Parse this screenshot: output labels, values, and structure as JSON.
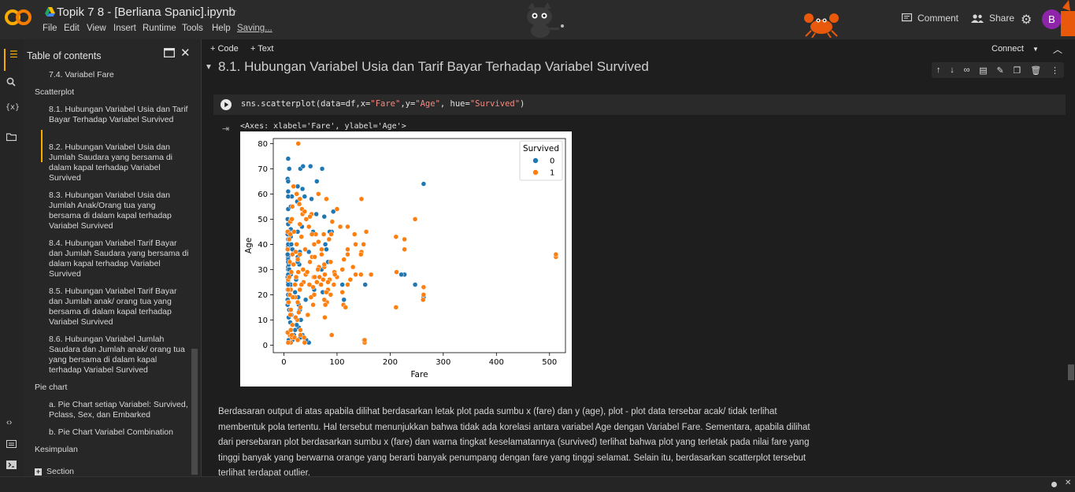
{
  "header": {
    "title": "Topik 7 8 - [Berliana Spanic].ipynb",
    "menus": [
      "File",
      "Edit",
      "View",
      "Insert",
      "Runtime",
      "Tools",
      "Help"
    ],
    "saving": "Saving...",
    "comment": "Comment",
    "share": "Share",
    "avatar": "B"
  },
  "sidebar": {
    "title": "Table of contents",
    "items": [
      {
        "text": "7.4. Variabel Fare",
        "level": 2
      },
      {
        "text": "Scatterplot",
        "level": 1
      },
      {
        "text": "8.1. Hubungan Variabel Usia dan Tarif Bayar Terhadap Variabel Survived",
        "level": 2,
        "active": true
      },
      {
        "text": "8.2. Hubungan Variabel Usia dan Jumlah Saudara yang bersama di dalam kapal terhadap Variabel Survived",
        "level": 2
      },
      {
        "text": "8.3. Hubungan Variabel Usia dan Jumlah Anak/Orang tua yang bersama di dalam kapal terhadap Variabel Survived",
        "level": 2
      },
      {
        "text": "8.4. Hubungan Variabel Tarif Bayar dan Jumlah Saudara yang bersama di dalam kapal terhadap Variabel Survived",
        "level": 2
      },
      {
        "text": "8.5. Hubungan Variabel Tarif Bayar dan Jumlah anak/ orang tua yang bersama di dalam kapal terhadap Variabel Survived",
        "level": 2
      },
      {
        "text": "8.6. Hubungan Variabel Jumlah Saudara dan Jumlah anak/ orang tua yang bersama di dalam kapal terhadap Variabel Survived",
        "level": 2
      },
      {
        "text": "Pie chart",
        "level": 1
      },
      {
        "text": "a. Pie Chart setiap Variabel: Survived, Pclass, Sex, dan Embarked",
        "level": 2
      },
      {
        "text": "b. Pie Chart Variabel Combination",
        "level": 2
      },
      {
        "text": "Kesimpulan",
        "level": 1
      },
      {
        "text": "Section",
        "level": 1
      }
    ]
  },
  "toolbar": {
    "code": "+ Code",
    "text": "+ Text",
    "connect": "Connect"
  },
  "notebook": {
    "heading": "8.1. Hubungan Variabel Usia dan Tarif Bayar Terhadap Variabel Survived",
    "code_prefix": "sns.scatterplot(data=df,x=",
    "code_s1": "\"Fare\"",
    "code_mid": ",y=",
    "code_s2": "\"Age\"",
    "code_mid2": ", hue=",
    "code_s3": "\"Survived\"",
    "code_suffix": ")",
    "output_text": "<Axes: xlabel='Fare', ylabel='Age'>",
    "paragraph": "Berdasaran output di atas apabila dilihat berdasarkan letak plot pada sumbu x (fare) dan y (age), plot - plot data tersebar acak/ tidak terlihat membentuk pola tertentu. Hal tersebut menunjukkan bahwa tidak ada korelasi antara variabel Age dengan Variabel Fare. Sementara, apabila dilihat dari persebaran plot berdasarkan sumbu x (fare) dan warna tingkat keselamatannya (survived) terlihat bahwa plot yang terletak pada nilai fare yang tinggi banyak yang berwarna orange yang berarti banyak penumpang dengan fare yang tinggi selamat. Selain itu, berdasarkan scatterplot tersebut terlihat terdapat outlier."
  },
  "colors": {
    "survived0": "#1f77b4",
    "survived1": "#ff7f0e",
    "accent": "#f9ab00"
  },
  "chart_data": {
    "type": "scatter",
    "xlabel": "Fare",
    "ylabel": "Age",
    "xlim": [
      -20,
      530
    ],
    "ylim": [
      -3,
      82
    ],
    "xticks": [
      0,
      100,
      200,
      300,
      400,
      500
    ],
    "yticks": [
      0,
      10,
      20,
      30,
      40,
      50,
      60,
      70,
      80
    ],
    "legend": {
      "title": "Survived",
      "placement": "top-right",
      "entries": [
        "0",
        "1"
      ]
    },
    "series": [
      {
        "name": "0",
        "points": [
          [
            7,
            22
          ],
          [
            8,
            35
          ],
          [
            8,
            54
          ],
          [
            9,
            2
          ],
          [
            7,
            27
          ],
          [
            8,
            20
          ],
          [
            8,
            39
          ],
          [
            16,
            2
          ],
          [
            26,
            35
          ],
          [
            13,
            55
          ],
          [
            8,
            31
          ],
          [
            10,
            14
          ],
          [
            8,
            40
          ],
          [
            16,
            19
          ],
          [
            7,
            66
          ],
          [
            13,
            28
          ],
          [
            8,
            42
          ],
          [
            21,
            21
          ],
          [
            7,
            18
          ],
          [
            8,
            40
          ],
          [
            8,
            65
          ],
          [
            8,
            28
          ],
          [
            7,
            44
          ],
          [
            52,
            58
          ],
          [
            23,
            26
          ],
          [
            31,
            70
          ],
          [
            7,
            16
          ],
          [
            27,
            19
          ],
          [
            10,
            30
          ],
          [
            8,
            48
          ],
          [
            8,
            25
          ],
          [
            13,
            24
          ],
          [
            8,
            61
          ],
          [
            8,
            34
          ],
          [
            13,
            46
          ],
          [
            8,
            17
          ],
          [
            26,
            45
          ],
          [
            9,
            32
          ],
          [
            8,
            38
          ],
          [
            47,
            37
          ],
          [
            8,
            74
          ],
          [
            10,
            70
          ],
          [
            39,
            59
          ],
          [
            73,
            21
          ],
          [
            8,
            30
          ],
          [
            8,
            28
          ],
          [
            15,
            59
          ],
          [
            29,
            32
          ],
          [
            78,
            40
          ],
          [
            151,
            2
          ],
          [
            153,
            24
          ],
          [
            263,
            19
          ],
          [
            247,
            24
          ],
          [
            263,
            64
          ],
          [
            227,
            28
          ],
          [
            221,
            28
          ],
          [
            113,
            18
          ],
          [
            110,
            24
          ],
          [
            76,
            51
          ],
          [
            61,
            52
          ],
          [
            35,
            62
          ],
          [
            34,
            47
          ],
          [
            26,
            33
          ],
          [
            26,
            63
          ],
          [
            21,
            6
          ],
          [
            40,
            2
          ],
          [
            28,
            7
          ],
          [
            32,
            10
          ],
          [
            19,
            4
          ],
          [
            47,
            1
          ],
          [
            55,
            45
          ],
          [
            71,
            30
          ],
          [
            83,
            33
          ],
          [
            90,
            45
          ],
          [
            28,
            16
          ],
          [
            12,
            9
          ],
          [
            9,
            11
          ],
          [
            31,
            3
          ],
          [
            7,
            50
          ],
          [
            8,
            59
          ],
          [
            7,
            22
          ],
          [
            8,
            26
          ],
          [
            7,
            36
          ],
          [
            8,
            33
          ],
          [
            8,
            24
          ],
          [
            14,
            40
          ],
          [
            14,
            12
          ],
          [
            24,
            8
          ],
          [
            30,
            14
          ],
          [
            35,
            4
          ],
          [
            42,
            2
          ],
          [
            50,
            71
          ],
          [
            36,
            71
          ],
          [
            72,
            70
          ],
          [
            62,
            65
          ],
          [
            93,
            53
          ],
          [
            86,
            45
          ],
          [
            80,
            38
          ],
          [
            57,
            22
          ],
          [
            52,
            44
          ],
          [
            41,
            18
          ],
          [
            25,
            57
          ],
          [
            13,
            43
          ],
          [
            20,
            24
          ],
          [
            10,
            30
          ],
          [
            12,
            22
          ],
          [
            16,
            38
          ],
          [
            9,
            45
          ],
          [
            14,
            50
          ],
          [
            30,
            37
          ]
        ]
      },
      {
        "name": "1",
        "points": [
          [
            71,
            38
          ],
          [
            8,
            26
          ],
          [
            53,
            35
          ],
          [
            11,
            4
          ],
          [
            30,
            58
          ],
          [
            16,
            55
          ],
          [
            13,
            14
          ],
          [
            31,
            15
          ],
          [
            7,
            38
          ],
          [
            21,
            19
          ],
          [
            146,
            58
          ],
          [
            12,
            49
          ],
          [
            76,
            31
          ],
          [
            263,
            23
          ],
          [
            30,
            48
          ],
          [
            15,
            3
          ],
          [
            15,
            4
          ],
          [
            22,
            37
          ],
          [
            26,
            34
          ],
          [
            35,
            52
          ],
          [
            81,
            17
          ],
          [
            80,
            58
          ],
          [
            30,
            36
          ],
          [
            7,
            45
          ],
          [
            13,
            1
          ],
          [
            27,
            29
          ],
          [
            13,
            22
          ],
          [
            86,
            26
          ],
          [
            10,
            42
          ],
          [
            512,
            35
          ],
          [
            512,
            36
          ],
          [
            247,
            50
          ],
          [
            262,
            18
          ],
          [
            263,
            20
          ],
          [
            211,
            15
          ],
          [
            227,
            38
          ],
          [
            227,
            42
          ],
          [
            211,
            43
          ],
          [
            212,
            29
          ],
          [
            152,
            1
          ],
          [
            150,
            40
          ],
          [
            155,
            45
          ],
          [
            135,
            40
          ],
          [
            120,
            47
          ],
          [
            106,
            47
          ],
          [
            91,
            49
          ],
          [
            113,
            34
          ],
          [
            94,
            24
          ],
          [
            77,
            28
          ],
          [
            66,
            31
          ],
          [
            57,
            20
          ],
          [
            83,
            22
          ],
          [
            69,
            24
          ],
          [
            55,
            16
          ],
          [
            120,
            38
          ],
          [
            110,
            30
          ],
          [
            135,
            28
          ],
          [
            145,
            28
          ],
          [
            133,
            44
          ],
          [
            164,
            28
          ],
          [
            146,
            37
          ],
          [
            120,
            36
          ],
          [
            78,
            16
          ],
          [
            76,
            18
          ],
          [
            62,
            25
          ],
          [
            55,
            23
          ],
          [
            89,
            44
          ],
          [
            57,
            40
          ],
          [
            56,
            27
          ],
          [
            77,
            11
          ],
          [
            7,
            5
          ],
          [
            13,
            6
          ],
          [
            16,
            8
          ],
          [
            20,
            3
          ],
          [
            26,
            2
          ],
          [
            31,
            4
          ],
          [
            39,
            1
          ],
          [
            8,
            1
          ],
          [
            12,
            44
          ],
          [
            15,
            50
          ],
          [
            18,
            63
          ],
          [
            24,
            60
          ],
          [
            29,
            56
          ],
          [
            34,
            54
          ],
          [
            42,
            50
          ],
          [
            47,
            47
          ],
          [
            52,
            52
          ],
          [
            60,
            44
          ],
          [
            65,
            41
          ],
          [
            71,
            36
          ],
          [
            76,
            32
          ],
          [
            88,
            33
          ],
          [
            95,
            29
          ],
          [
            100,
            27
          ],
          [
            27,
            80
          ],
          [
            39,
            53
          ],
          [
            33,
            43
          ],
          [
            36,
            30
          ],
          [
            41,
            28
          ],
          [
            48,
            24
          ],
          [
            51,
            19
          ],
          [
            26,
            17
          ],
          [
            21,
            24
          ],
          [
            18,
            32
          ],
          [
            23,
            27
          ],
          [
            16,
            36
          ],
          [
            14,
            29
          ],
          [
            10,
            27
          ],
          [
            11,
            33
          ],
          [
            30,
            22
          ],
          [
            37,
            25
          ],
          [
            44,
            29
          ],
          [
            49,
            33
          ],
          [
            58,
            27
          ],
          [
            64,
            30
          ],
          [
            70,
            24
          ],
          [
            83,
            25
          ],
          [
            110,
            21
          ],
          [
            130,
            31
          ],
          [
            65,
            60
          ],
          [
            100,
            54
          ],
          [
            85,
            42
          ],
          [
            75,
            44
          ],
          [
            40,
            38
          ],
          [
            33,
            24
          ],
          [
            24,
            40
          ],
          [
            19,
            45
          ],
          [
            11,
            20
          ],
          [
            17,
            19
          ],
          [
            49,
            51
          ],
          [
            53,
            44
          ],
          [
            58,
            35
          ],
          [
            67,
            27
          ],
          [
            74,
            26
          ],
          [
            80,
            21
          ],
          [
            88,
            20
          ],
          [
            96,
            28
          ],
          [
            112,
            16
          ],
          [
            116,
            15
          ],
          [
            120,
            24
          ],
          [
            8,
            22
          ],
          [
            9,
            17
          ],
          [
            12,
            12
          ],
          [
            25,
            10
          ],
          [
            31,
            6
          ],
          [
            38,
            3
          ],
          [
            45,
            12
          ],
          [
            28,
            13
          ],
          [
            22,
            11
          ],
          [
            90,
            4
          ],
          [
            152,
            2
          ],
          [
            125,
            26
          ],
          [
            145,
            36
          ]
        ]
      }
    ]
  }
}
